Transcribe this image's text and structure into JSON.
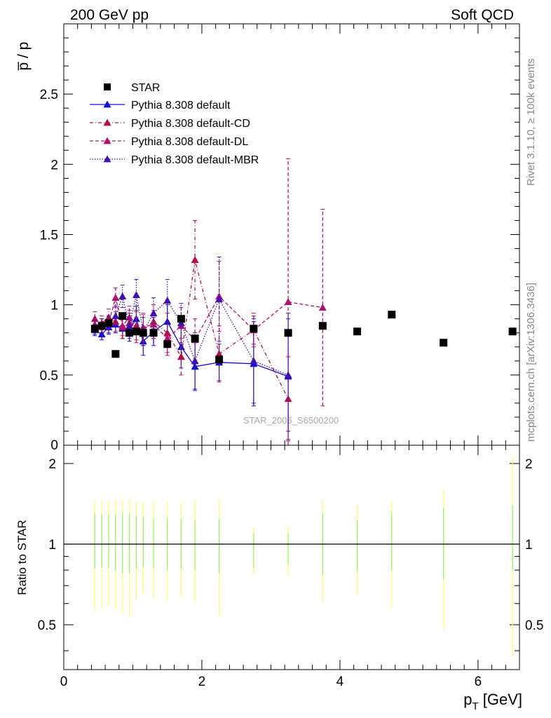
{
  "header": {
    "left": "200 GeV pp",
    "right": "Soft QCD"
  },
  "side_labels": {
    "rivet": "Rivet 3.1.10, ≥ 100k events",
    "mcplots": "mcplots.cern.ch [arXiv:1306.3436]"
  },
  "watermark": "STAR_2006_S6500200",
  "colors": {
    "star": "#000000",
    "default": "#1010d0",
    "cd": "#b0104a",
    "dl": "#b01070",
    "mbr": "#4010b0",
    "band_yellow": "#ffff77",
    "band_green": "#99ee77"
  },
  "chart_data": [
    {
      "type": "scatter",
      "ylabel": "p̅ / p",
      "xlim": [
        0,
        6.6
      ],
      "ylim": [
        0,
        3.0
      ],
      "y_ticks": [
        "0.5",
        "1",
        "1.5",
        "2",
        "2.5"
      ],
      "grid": false,
      "legend_position": "top-left",
      "series": [
        {
          "name": "STAR",
          "marker": "square",
          "x": [
            0.45,
            0.55,
            0.65,
            0.75,
            0.85,
            0.95,
            1.05,
            1.15,
            1.3,
            1.5,
            1.7,
            1.9,
            2.25,
            2.75,
            3.25,
            3.75,
            4.25,
            4.75,
            5.5,
            6.5
          ],
          "y": [
            0.83,
            0.85,
            0.87,
            0.65,
            0.92,
            0.8,
            0.81,
            0.8,
            0.8,
            0.72,
            0.9,
            0.76,
            0.61,
            0.83,
            0.8,
            0.85,
            0.81,
            0.93,
            0.73,
            0.81
          ]
        },
        {
          "name": "Pythia 8.308 default",
          "marker": "triangle",
          "line": "solid",
          "x": [
            0.45,
            0.55,
            0.65,
            0.75,
            0.85,
            0.95,
            1.05,
            1.15,
            1.3,
            1.5,
            1.7,
            1.9,
            2.25,
            2.75,
            3.25
          ],
          "y": [
            0.82,
            0.79,
            0.84,
            0.86,
            0.83,
            0.82,
            0.9,
            0.74,
            0.81,
            0.88,
            0.7,
            0.56,
            0.59,
            0.58,
            0.49
          ],
          "err": [
            0.04,
            0.04,
            0.05,
            0.06,
            0.07,
            0.08,
            0.09,
            0.1,
            0.1,
            0.12,
            0.15,
            0.17,
            0.13,
            0.3,
            0.45
          ]
        },
        {
          "name": "Pythia 8.308 default-CD",
          "marker": "triangle",
          "line": "dashdot",
          "x": [
            0.45,
            0.55,
            0.65,
            0.75,
            0.85,
            0.95,
            1.05,
            1.15,
            1.3,
            1.5,
            1.7,
            1.9,
            2.25,
            2.75,
            3.25
          ],
          "y": [
            0.9,
            0.87,
            0.91,
            0.88,
            0.84,
            0.87,
            0.85,
            0.82,
            0.88,
            0.8,
            0.63,
            1.32,
            0.65,
            0.82,
            0.33
          ],
          "err": [
            0.05,
            0.05,
            0.06,
            0.07,
            0.08,
            0.09,
            0.1,
            0.11,
            0.12,
            0.14,
            0.13,
            0.28,
            0.2,
            0.1,
            0.3
          ]
        },
        {
          "name": "Pythia 8.308 default-DL",
          "marker": "triangle",
          "line": "dashed",
          "x": [
            0.45,
            0.55,
            0.65,
            0.75,
            0.85,
            0.95,
            1.05,
            1.15,
            1.3,
            1.5,
            1.7,
            1.9,
            2.25,
            2.75,
            3.25,
            3.75
          ],
          "y": [
            0.86,
            0.85,
            0.87,
            1.05,
            0.85,
            0.91,
            0.82,
            0.84,
            0.86,
            0.76,
            0.85,
            0.75,
            1.06,
            0.82,
            1.02,
            0.98
          ],
          "err": [
            0.04,
            0.05,
            0.05,
            0.07,
            0.07,
            0.08,
            0.09,
            0.1,
            0.1,
            0.12,
            0.13,
            0.15,
            0.25,
            0.12,
            1.02,
            0.7
          ]
        },
        {
          "name": "Pythia 8.308 default-MBR",
          "marker": "triangle",
          "line": "dotted",
          "x": [
            0.45,
            0.55,
            0.65,
            0.75,
            0.85,
            0.95,
            1.05,
            1.15,
            1.3,
            1.5,
            1.7,
            1.9,
            2.25,
            2.75,
            3.25
          ],
          "y": [
            0.84,
            0.85,
            0.86,
            0.92,
            1.06,
            0.85,
            1.07,
            0.81,
            0.94,
            1.03,
            0.87,
            0.6,
            1.04,
            0.6,
            0.5
          ],
          "err": [
            0.05,
            0.05,
            0.06,
            0.07,
            0.08,
            0.09,
            0.11,
            0.1,
            0.11,
            0.15,
            0.14,
            0.2,
            0.3,
            0.3,
            0.4
          ]
        }
      ]
    },
    {
      "type": "scatter",
      "xlabel": "p_T [GeV]",
      "ylabel": "Ratio to STAR",
      "xlim": [
        0,
        6.6
      ],
      "ylim": [
        0.34,
        2.34
      ],
      "x_ticks": [
        "0",
        "2",
        "4",
        "6"
      ],
      "y_ticks_left": [
        "0.5",
        "1",
        "2"
      ],
      "y_ticks_right": [
        "0.5",
        "1",
        "2"
      ],
      "reference_line": 1,
      "bands": [
        {
          "x": 0.45,
          "yellow": [
            0.56,
            1.47
          ],
          "green": [
            0.81,
            1.3
          ]
        },
        {
          "x": 0.55,
          "yellow": [
            0.58,
            1.46
          ],
          "green": [
            0.82,
            1.29
          ]
        },
        {
          "x": 0.65,
          "yellow": [
            0.59,
            1.45
          ],
          "green": [
            0.82,
            1.29
          ]
        },
        {
          "x": 0.75,
          "yellow": [
            0.57,
            1.46
          ],
          "green": [
            0.8,
            1.29
          ]
        },
        {
          "x": 0.85,
          "yellow": [
            0.55,
            1.48
          ],
          "green": [
            0.78,
            1.3
          ]
        },
        {
          "x": 0.95,
          "yellow": [
            0.53,
            1.47
          ],
          "green": [
            0.78,
            1.3
          ]
        },
        {
          "x": 1.05,
          "yellow": [
            0.62,
            1.44
          ],
          "green": [
            0.81,
            1.27
          ]
        },
        {
          "x": 1.15,
          "yellow": [
            0.66,
            1.43
          ],
          "green": [
            0.82,
            1.26
          ]
        },
        {
          "x": 1.3,
          "yellow": [
            0.63,
            1.43
          ],
          "green": [
            0.81,
            1.24
          ]
        },
        {
          "x": 1.5,
          "yellow": [
            0.62,
            1.44
          ],
          "green": [
            0.8,
            1.24
          ]
        },
        {
          "x": 1.7,
          "yellow": [
            0.64,
            1.42
          ],
          "green": [
            0.81,
            1.24
          ]
        },
        {
          "x": 1.9,
          "yellow": [
            0.61,
            1.45
          ],
          "green": [
            0.8,
            1.23
          ]
        },
        {
          "x": 2.25,
          "yellow": [
            0.54,
            1.48
          ],
          "green": [
            0.78,
            1.24
          ]
        },
        {
          "x": 2.75,
          "yellow": [
            0.77,
            1.15
          ],
          "green": [
            0.82,
            1.1
          ]
        },
        {
          "x": 3.25,
          "yellow": [
            0.76,
            1.17
          ],
          "green": [
            0.84,
            1.1
          ]
        },
        {
          "x": 3.75,
          "yellow": [
            0.61,
            1.46
          ],
          "green": [
            0.77,
            1.3
          ]
        },
        {
          "x": 4.25,
          "yellow": [
            0.65,
            1.41
          ],
          "green": [
            0.8,
            1.23
          ]
        },
        {
          "x": 4.75,
          "yellow": [
            0.58,
            1.45
          ],
          "green": [
            0.8,
            1.3
          ]
        },
        {
          "x": 5.5,
          "yellow": [
            0.48,
            1.59
          ],
          "green": [
            0.74,
            1.36
          ]
        },
        {
          "x": 6.5,
          "yellow": [
            0.38,
            2.1
          ],
          "green": [
            0.8,
            1.4
          ]
        }
      ]
    }
  ]
}
